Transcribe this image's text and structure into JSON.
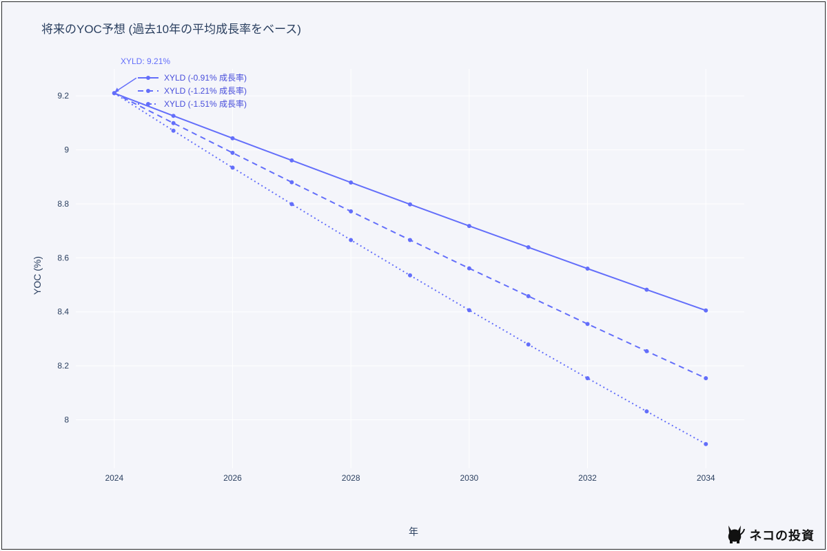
{
  "title": "将来のYOC予想 (過去10年の平均成長率をベース)",
  "background_color": "#f4f5fa",
  "plot_background": "#f4f5fa",
  "grid_color": "#ffffff",
  "frame_color": "#2a2a2a",
  "text_color": "#2a3f5f",
  "x_axis": {
    "label": "年",
    "ticks": [
      2024,
      2026,
      2028,
      2030,
      2032,
      2034
    ],
    "min": 2023.35,
    "max": 2034.65
  },
  "y_axis": {
    "label": "YOC (%)",
    "ticks": [
      8,
      8.2,
      8.4,
      8.6,
      8.8,
      9,
      9.2
    ],
    "min": 7.82,
    "max": 9.3
  },
  "annotation": {
    "label": "XYLD: 9.21%",
    "arrow_to_x": 2024,
    "arrow_to_y": 9.21
  },
  "series": [
    {
      "name": "XYLD (-0.91% 成長率)",
      "color": "#636efa",
      "dash": "solid",
      "line_width": 2,
      "marker_r": 3,
      "x": [
        2024,
        2025,
        2026,
        2027,
        2028,
        2029,
        2030,
        2031,
        2032,
        2033,
        2034
      ],
      "y": [
        9.21,
        9.126,
        9.043,
        8.961,
        8.879,
        8.798,
        8.718,
        8.639,
        8.56,
        8.482,
        8.405
      ]
    },
    {
      "name": "XYLD (-1.21% 成長率)",
      "color": "#636efa",
      "dash": "8 6",
      "line_width": 2,
      "marker_r": 3,
      "x": [
        2024,
        2025,
        2026,
        2027,
        2028,
        2029,
        2030,
        2031,
        2032,
        2033,
        2034
      ],
      "y": [
        9.21,
        9.099,
        8.989,
        8.88,
        8.772,
        8.666,
        8.561,
        8.458,
        8.355,
        8.254,
        8.154
      ]
    },
    {
      "name": "XYLD (-1.51% 成長率)",
      "color": "#636efa",
      "dash": "2 4",
      "line_width": 2,
      "marker_r": 3,
      "x": [
        2024,
        2025,
        2026,
        2027,
        2028,
        2029,
        2030,
        2031,
        2032,
        2033,
        2034
      ],
      "y": [
        9.21,
        9.071,
        8.934,
        8.799,
        8.666,
        8.535,
        8.406,
        8.279,
        8.154,
        8.031,
        7.91
      ]
    }
  ],
  "legend_font_color": "#474ddb",
  "watermark": "ネコの投資"
}
